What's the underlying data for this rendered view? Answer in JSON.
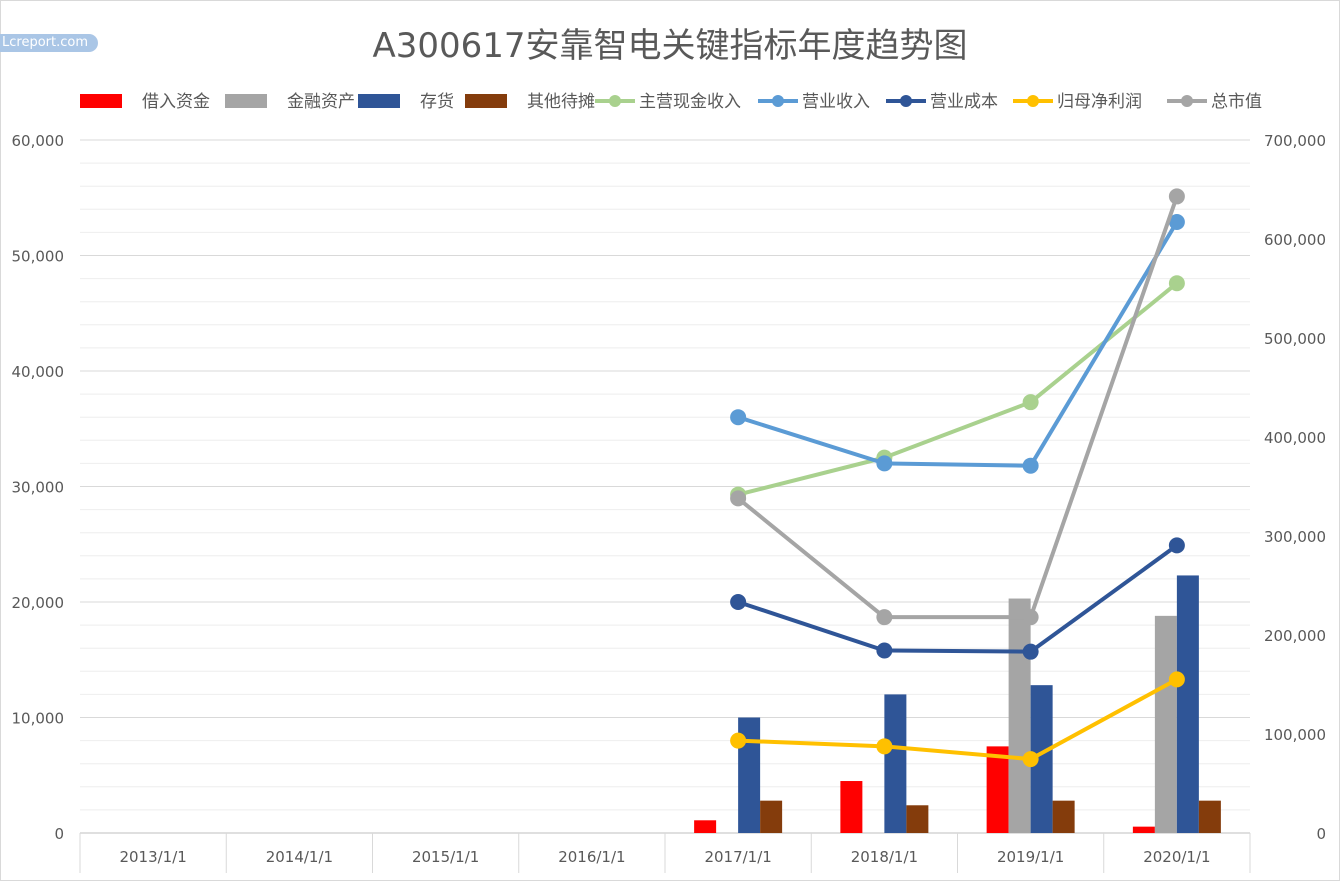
{
  "watermark": "Lcreport.com",
  "chart_data": {
    "type": "bar",
    "title": "A300617安靠智电关键指标年度趋势图",
    "categories": [
      "2013/1/1",
      "2014/1/1",
      "2015/1/1",
      "2016/1/1",
      "2017/1/1",
      "2018/1/1",
      "2019/1/1",
      "2020/1/1"
    ],
    "y_left": {
      "ylim": [
        0,
        60000
      ],
      "ticks": [
        "0",
        "10,000",
        "20,000",
        "30,000",
        "40,000",
        "50,000",
        "60,000"
      ]
    },
    "y_right": {
      "ylim": [
        0,
        700000
      ],
      "ticks": [
        "0",
        "100,000",
        "200,000",
        "300,000",
        "400,000",
        "500,000",
        "600,000",
        "700,000"
      ]
    },
    "grid": true,
    "legend_position": "top",
    "bar_series": [
      {
        "name": "借入资金",
        "color": "#ff0000",
        "values": [
          null,
          null,
          null,
          null,
          1100,
          4500,
          7500,
          550
        ]
      },
      {
        "name": "金融资产",
        "color": "#a5a5a5",
        "values": [
          null,
          null,
          null,
          null,
          null,
          null,
          20300,
          18800
        ]
      },
      {
        "name": "存货",
        "color": "#2f5597",
        "values": [
          null,
          null,
          null,
          null,
          10000,
          12000,
          12800,
          22300
        ]
      },
      {
        "name": "其他待摊",
        "color": "#843c0c",
        "values": [
          null,
          null,
          null,
          null,
          2800,
          2400,
          2800,
          2800
        ]
      }
    ],
    "line_series": [
      {
        "name": "主营现金收入",
        "color": "#a9d18e",
        "axis": "left",
        "values": [
          null,
          null,
          null,
          null,
          29300,
          32500,
          37300,
          47600
        ]
      },
      {
        "name": "营业收入",
        "color": "#5b9bd5",
        "axis": "left",
        "values": [
          null,
          null,
          null,
          null,
          36000,
          32000,
          31800,
          52900
        ]
      },
      {
        "name": "营业成本",
        "color": "#2f5597",
        "axis": "left",
        "values": [
          null,
          null,
          null,
          null,
          20000,
          15800,
          15700,
          24900
        ]
      },
      {
        "name": "归母净利润",
        "color": "#ffc000",
        "axis": "left",
        "values": [
          null,
          null,
          null,
          null,
          8000,
          7500,
          6400,
          13300
        ]
      },
      {
        "name": "总市值",
        "color": "#a5a5a5",
        "axis": "right",
        "values": [
          null,
          null,
          null,
          null,
          338000,
          218000,
          218000,
          643000
        ]
      }
    ]
  }
}
